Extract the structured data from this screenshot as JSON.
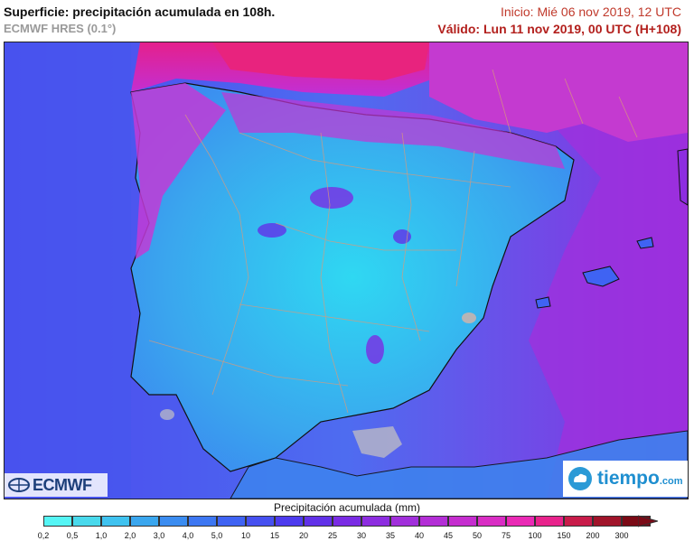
{
  "header": {
    "title": "Superficie: precipitación acumulada en 108h.",
    "model": "ECMWF HRES (0.1°)",
    "init": "Inicio: Mié 06 nov 2019, 12 UTC",
    "valid": "Válido: Lun 11 nov 2019, 00 UTC (H+108)"
  },
  "logos": {
    "ecmwf": "ECMWF",
    "tiempo": "tiempo",
    "tiempo_suffix": ".com"
  },
  "legend": {
    "title": "Precipitación acumulada (mm)",
    "values": [
      "0,2",
      "0,5",
      "1,0",
      "2,0",
      "3,0",
      "4,0",
      "5,0",
      "10",
      "15",
      "20",
      "25",
      "30",
      "35",
      "40",
      "45",
      "50",
      "75",
      "100",
      "150",
      "200",
      "300"
    ],
    "colors": [
      "#55f5f5",
      "#49d9ec",
      "#3fc2ef",
      "#3aa6ee",
      "#3b8cf0",
      "#3d77f2",
      "#3f63f3",
      "#4650f0",
      "#4d3bee",
      "#6131e8",
      "#7a2ce4",
      "#8d2de0",
      "#a12fdb",
      "#b32ed6",
      "#c52dcf",
      "#d92dc4",
      "#ea2ab5",
      "#e8238c",
      "#c81c4a",
      "#a0142a",
      "#7b0a16"
    ]
  },
  "map": {
    "ocean_color": "#4a5ef0",
    "land_color": "#3ea8ef",
    "heavy_color": "#e0208a"
  }
}
